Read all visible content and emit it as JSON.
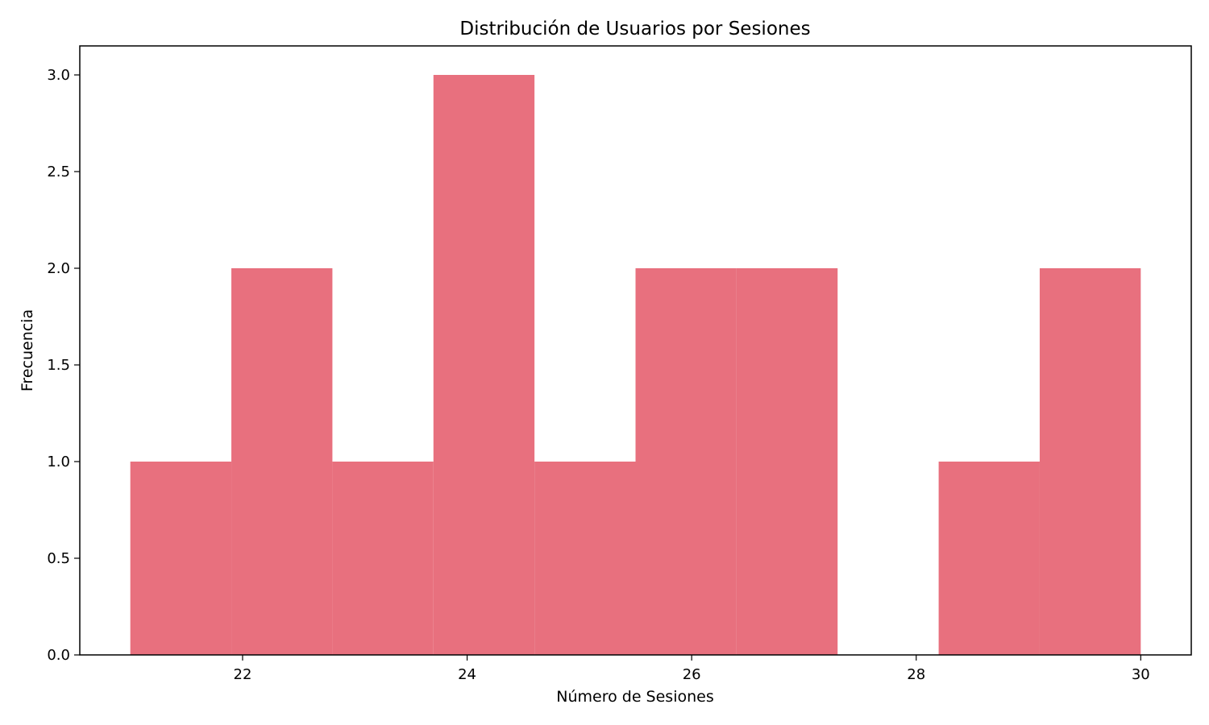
{
  "chart_data": {
    "type": "bar",
    "title": "Distribución de Usuarios por Sesiones",
    "xlabel": "Número de Sesiones",
    "ylabel": "Frecuencia",
    "bin_edges": [
      21.0,
      21.9,
      22.8,
      23.7,
      24.6,
      25.5,
      26.4,
      27.3,
      28.2,
      29.1,
      30.0
    ],
    "values": [
      1,
      2,
      1,
      3,
      1,
      2,
      2,
      0,
      1,
      2
    ],
    "xlim": [
      20.55,
      30.45
    ],
    "ylim": [
      0,
      3.15
    ],
    "x_ticks": [
      22,
      24,
      26,
      28,
      30
    ],
    "y_ticks": [
      0.0,
      0.5,
      1.0,
      1.5,
      2.0,
      2.5,
      3.0
    ],
    "x_tick_labels": [
      "22",
      "24",
      "26",
      "28",
      "30"
    ],
    "y_tick_labels": [
      "0.0",
      "0.5",
      "1.0",
      "1.5",
      "2.0",
      "2.5",
      "3.0"
    ],
    "bar_color": "#e8707e",
    "grid": false,
    "legend": "none"
  }
}
